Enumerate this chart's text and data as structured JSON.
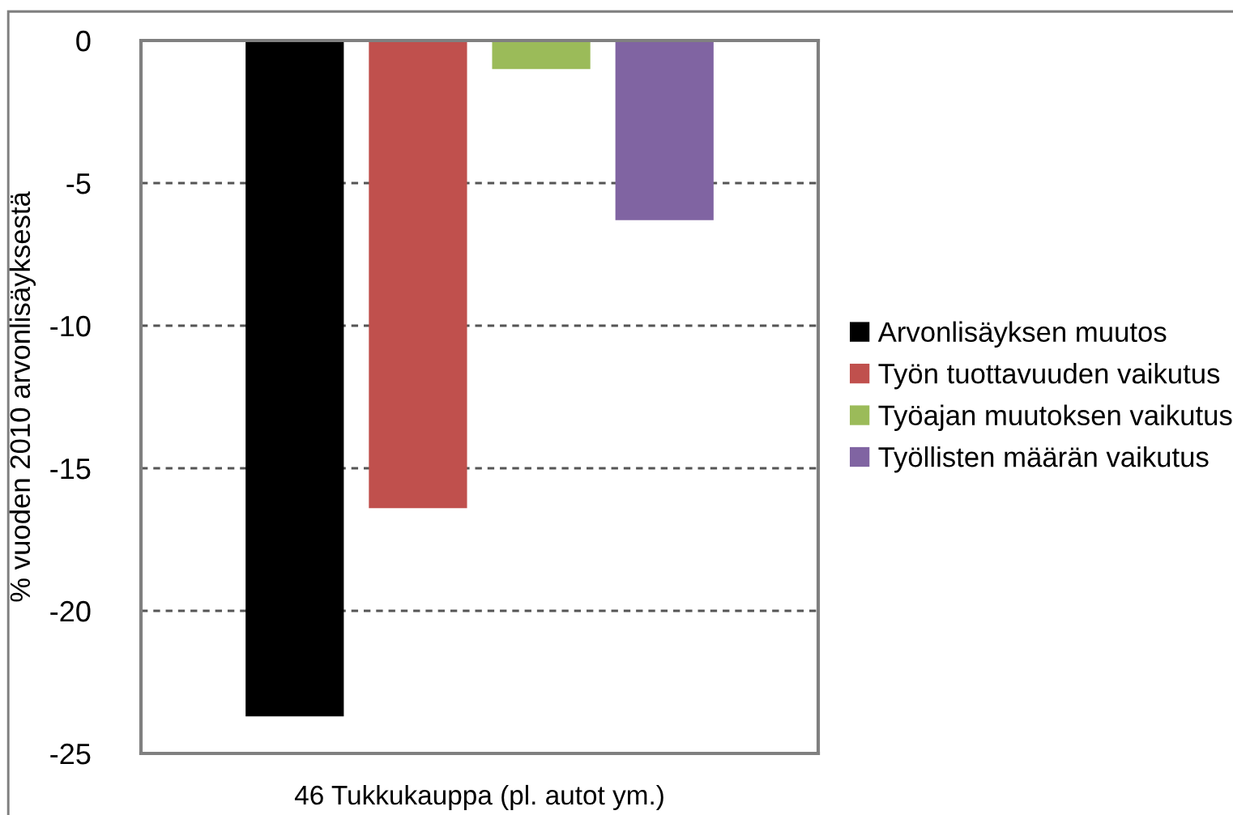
{
  "chart_data": {
    "type": "bar",
    "ylabel": "% vuoden 2010 arvonlisäyksestä",
    "categories": [
      "46 Tukkukauppa (pl. autot ym.)"
    ],
    "series": [
      {
        "name": "Arvonlisäyksen muutos",
        "color": "#000000",
        "values": [
          -23.7
        ]
      },
      {
        "name": "Työn tuottavuuden vaikutus",
        "color": "#c0504d",
        "values": [
          -16.4
        ]
      },
      {
        "name": "Työajan muutoksen vaikutus",
        "color": "#9bbb59",
        "values": [
          -1.0
        ]
      },
      {
        "name": "Työllisten määrän vaikutus",
        "color": "#8064a2",
        "values": [
          -6.3
        ]
      }
    ],
    "ylim": [
      -25,
      0
    ],
    "yticks": [
      -25,
      -20,
      -15,
      -10,
      -5,
      0
    ],
    "grid": "y",
    "legend": "right"
  }
}
